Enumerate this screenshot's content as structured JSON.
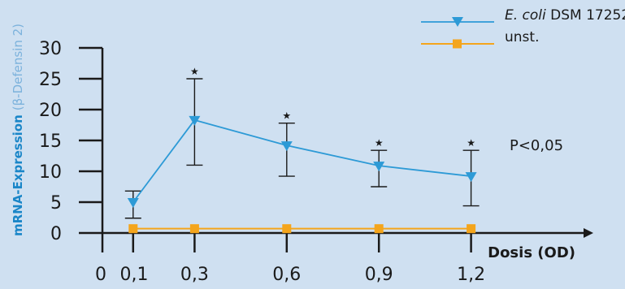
{
  "chart_data": {
    "type": "line",
    "x": [
      0.1,
      0.3,
      0.6,
      0.9,
      1.2
    ],
    "x_tick_labels": [
      "0",
      "0,1",
      "0,3",
      "0,6",
      "0,9",
      "1,2"
    ],
    "xlabel": "Dosis (OD)",
    "ylabel_main": "mRNA-Expression",
    "ylabel_sub": "(β-Defensin 2)",
    "ylim": [
      0,
      30
    ],
    "y_ticks": [
      0,
      5,
      10,
      15,
      20,
      25,
      30
    ],
    "legend_placement": "top-right",
    "series": [
      {
        "name_italic": "E. coli",
        "name_rest": " DSM 17252",
        "marker": "triangle-down",
        "color": "#2d9ad6",
        "values": [
          5.0,
          18.3,
          14.2,
          10.9,
          9.2
        ],
        "error_low": [
          2.4,
          11.0,
          9.2,
          7.5,
          4.4
        ],
        "error_high": [
          6.8,
          25.0,
          17.8,
          13.4,
          13.4
        ],
        "significant": [
          false,
          true,
          true,
          true,
          true
        ]
      },
      {
        "name": "unst.",
        "marker": "square",
        "color": "#f4a51c",
        "values": [
          0.7,
          0.7,
          0.7,
          0.7,
          0.7
        ]
      }
    ],
    "annotation": "P<0,05",
    "significance_marker": "★"
  }
}
